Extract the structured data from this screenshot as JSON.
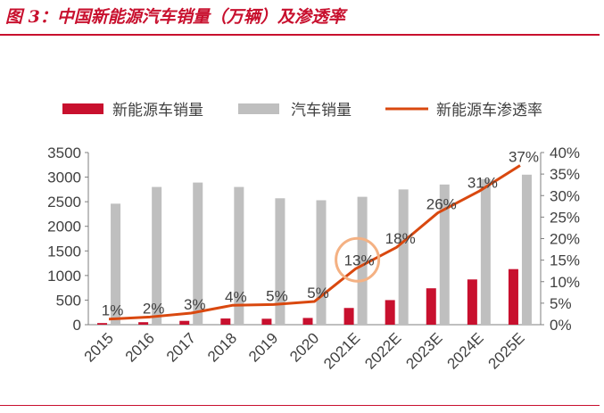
{
  "figure": {
    "title": "图 3：中国新能源汽车销量（万辆）及渗透率",
    "accent_color": "#c8102e"
  },
  "chart_data": {
    "type": "bar",
    "categories": [
      "2015",
      "2016",
      "2017",
      "2018",
      "2019",
      "2020",
      "2021E",
      "2022E",
      "2023E",
      "2024E",
      "2025E"
    ],
    "series": [
      {
        "name": "新能源车销量",
        "kind": "bar",
        "axis": "left",
        "color": "#c8102e",
        "values": [
          33,
          51,
          78,
          126,
          121,
          137,
          340,
          500,
          740,
          920,
          1130
        ]
      },
      {
        "name": "汽车销量",
        "kind": "bar",
        "axis": "left",
        "color": "#bfbfbf",
        "values": [
          2460,
          2800,
          2890,
          2800,
          2570,
          2530,
          2600,
          2750,
          2850,
          2960,
          3050
        ]
      },
      {
        "name": "新能源车渗透率",
        "kind": "line",
        "axis": "right",
        "color": "#d9480f",
        "values": [
          1.3,
          1.8,
          2.7,
          4.5,
          4.7,
          5.4,
          13,
          18,
          26,
          31,
          37
        ],
        "labels": [
          "1%",
          "2%",
          "3%",
          "4%",
          "5%",
          "5%",
          "13%",
          "18%",
          "26%",
          "31%",
          "37%"
        ]
      }
    ],
    "ylim_left": [
      0,
      3500
    ],
    "yticks_left": [
      "0",
      "500",
      "1000",
      "1500",
      "2000",
      "2500",
      "3000",
      "3500"
    ],
    "ylim_right": [
      0,
      40
    ],
    "yticks_right": [
      "0%",
      "5%",
      "10%",
      "15%",
      "20%",
      "25%",
      "30%",
      "35%",
      "40%"
    ],
    "highlight": {
      "category": "2021E",
      "color": "#f4b183"
    },
    "legend_position": "top",
    "grid": false
  }
}
